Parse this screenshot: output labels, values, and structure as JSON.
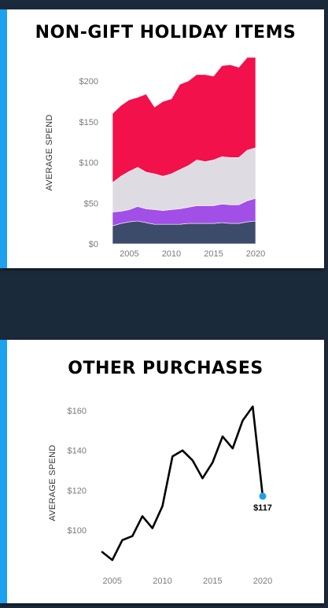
{
  "accent_color": "#1ea0f0",
  "charts": [
    {
      "title": "NON-GIFT HOLIDAY ITEMS",
      "ylabel": "AVERAGE SPEND",
      "chart_data": {
        "type": "area",
        "stacked": true,
        "x": [
          2003,
          2004,
          2005,
          2006,
          2007,
          2008,
          2009,
          2010,
          2011,
          2012,
          2013,
          2014,
          2015,
          2016,
          2017,
          2018,
          2019,
          2020
        ],
        "xticks": [
          2005,
          2010,
          2015,
          2020
        ],
        "xtick_labels": [
          "2005",
          "2010",
          "2015",
          "2020"
        ],
        "yticks": [
          0,
          50,
          100,
          150,
          200
        ],
        "ytick_labels": [
          "$0",
          "$50",
          "$100",
          "$150",
          "$200"
        ],
        "ylim": [
          0,
          230
        ],
        "grid": false,
        "series": [
          {
            "color": "#3d4b6b",
            "values": [
              22,
              25,
              27,
              28,
              26,
              24,
              24,
              24,
              24,
              25,
              25,
              25,
              25,
              26,
              25,
              25,
              27,
              28
            ]
          },
          {
            "color": "#a24fe8",
            "values": [
              17,
              15,
              15,
              18,
              17,
              18,
              17,
              18,
              19,
              20,
              22,
              22,
              22,
              23,
              23,
              23,
              26,
              28
            ]
          },
          {
            "color": "#dedbe3",
            "values": [
              36,
              43,
              47,
              48,
              45,
              44,
              42,
              44,
              48,
              51,
              56,
              54,
              56,
              58,
              58,
              58,
              62,
              62
            ]
          },
          {
            "color": "#f2114a",
            "values": [
              85,
              87,
              88,
              86,
              96,
              82,
              92,
              92,
              105,
              104,
              105,
              107,
              103,
              112,
              114,
              111,
              114,
              111
            ]
          }
        ]
      }
    },
    {
      "title": "OTHER PURCHASES",
      "ylabel": "AVERAGE SPEND",
      "chart_data": {
        "type": "line",
        "x": [
          2004,
          2005,
          2006,
          2007,
          2008,
          2009,
          2010,
          2011,
          2012,
          2013,
          2014,
          2015,
          2016,
          2017,
          2018,
          2019,
          2020
        ],
        "values": [
          89,
          85,
          95,
          97,
          107,
          101,
          112,
          137,
          140,
          135,
          126,
          134,
          147,
          141,
          155,
          162,
          117
        ],
        "xticks": [
          2005,
          2010,
          2015,
          2020
        ],
        "xtick_labels": [
          "2005",
          "2010",
          "2015",
          "2020"
        ],
        "yticks": [
          100,
          120,
          140,
          160
        ],
        "ytick_labels": [
          "$100",
          "$120",
          "$140",
          "$160"
        ],
        "ylim": [
          82,
          166
        ],
        "grid": false,
        "line_color": "#000000",
        "end_marker_color": "#1ea0f0",
        "end_label": "$117"
      }
    }
  ]
}
